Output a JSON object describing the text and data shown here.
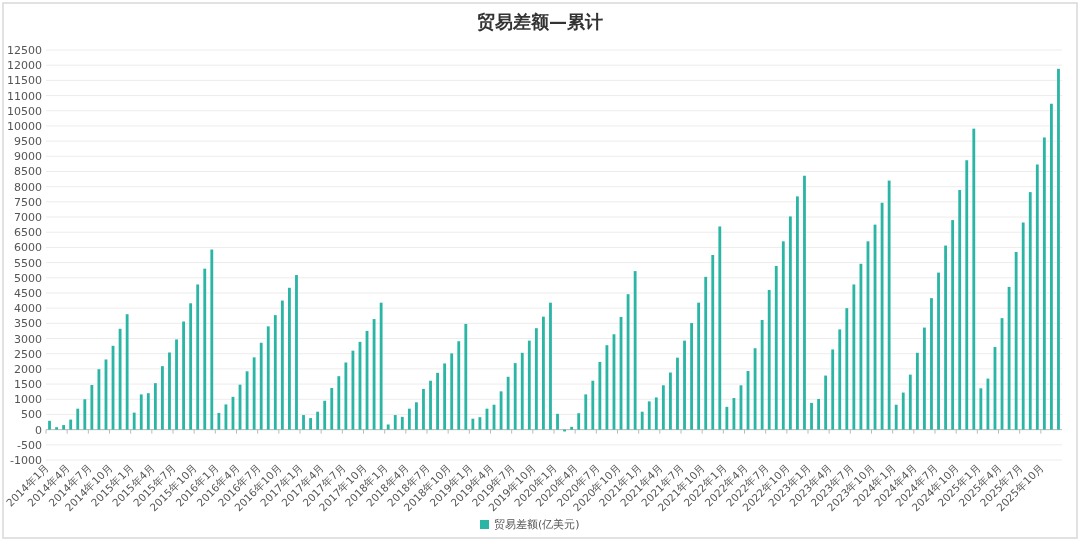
{
  "chart_data": {
    "type": "bar",
    "title": "贸易差额—累计",
    "legend": "bottom",
    "grid": "y",
    "categories": [
      "2014年1月",
      null,
      null,
      "2014年4月",
      null,
      null,
      "2014年7月",
      null,
      null,
      "2014年10月",
      null,
      null,
      "2015年1月",
      null,
      null,
      "2015年4月",
      null,
      null,
      "2015年7月",
      null,
      null,
      "2015年10月",
      null,
      null,
      "2016年1月",
      null,
      null,
      "2016年4月",
      null,
      null,
      "2016年7月",
      null,
      null,
      "2016年10月",
      null,
      null,
      "2017年1月",
      null,
      null,
      "2017年4月",
      null,
      null,
      "2017年7月",
      null,
      null,
      "2017年10月",
      null,
      null,
      "2018年1月",
      null,
      null,
      "2018年4月",
      null,
      null,
      "2018年7月",
      null,
      null,
      "2018年10月",
      null,
      null,
      "2019年1月",
      null,
      null,
      "2019年4月",
      null,
      null,
      "2019年7月",
      null,
      null,
      "2019年10月",
      null,
      null,
      "2020年1月",
      null,
      null,
      "2020年4月",
      null,
      null,
      "2020年7月",
      null,
      null,
      "2020年10月",
      null,
      null,
      "2021年1月",
      null,
      null,
      "2021年4月",
      null,
      null,
      "2021年7月",
      null,
      null,
      "2021年10月",
      null,
      null,
      "2022年1月",
      null,
      null,
      "2022年4月",
      null,
      null,
      "2022年7月",
      null,
      null,
      "2022年10月",
      null,
      null,
      "2023年1月",
      null,
      null,
      "2023年4月",
      null,
      null,
      "2023年7月",
      null,
      null,
      "2023年10月",
      null,
      null,
      "2024年1月",
      null,
      null,
      "2024年4月",
      null,
      null,
      "2024年7月",
      null,
      null,
      "2024年10月",
      null,
      null,
      "2025年1月",
      null,
      null,
      "2025年4月",
      null,
      null,
      "2025年7月",
      null,
      null,
      "2025年10月",
      null,
      null
    ],
    "ylim": [
      -1000,
      12500
    ],
    "yticks": [
      -1000,
      -500,
      0,
      500,
      1000,
      1500,
      2000,
      2500,
      3000,
      3500,
      4000,
      4500,
      5000,
      5500,
      6000,
      6500,
      7000,
      7500,
      8000,
      8500,
      9000,
      9500,
      10000,
      10500,
      11000,
      11500,
      12000,
      12500
    ],
    "series": [
      {
        "name": "贸易差额(亿美元)",
        "color": "#2ab5a5",
        "values": [
          290,
          80,
          150,
          330,
          690,
          1000,
          1470,
          1990,
          2310,
          2760,
          3320,
          3800,
          560,
          1160,
          1200,
          1530,
          2090,
          2540,
          2970,
          3560,
          4160,
          4780,
          5300,
          5930,
          550,
          830,
          1080,
          1480,
          1920,
          2380,
          2860,
          3400,
          3770,
          4250,
          4670,
          5090,
          480,
          380,
          590,
          950,
          1370,
          1760,
          2210,
          2600,
          2890,
          3250,
          3640,
          4180,
          170,
          480,
          420,
          690,
          900,
          1340,
          1610,
          1870,
          2180,
          2510,
          2910,
          3480,
          360,
          410,
          690,
          820,
          1260,
          1740,
          2190,
          2530,
          2930,
          3340,
          3720,
          4180,
          520,
          -60,
          90,
          540,
          1160,
          1610,
          2230,
          2780,
          3140,
          3710,
          4460,
          5220,
          590,
          930,
          1060,
          1460,
          1880,
          2370,
          2930,
          3510,
          4180,
          5030,
          5750,
          6690,
          750,
          1040,
          1460,
          1930,
          2680,
          3610,
          4600,
          5390,
          6200,
          7020,
          7680,
          8360,
          880,
          1010,
          1780,
          2640,
          3300,
          4000,
          4780,
          5460,
          6200,
          6750,
          7470,
          8200,
          820,
          1220,
          1810,
          2530,
          3360,
          4330,
          5170,
          6060,
          6900,
          7890,
          8870,
          9910,
          1360,
          1680,
          2720,
          3670,
          4700,
          5850,
          6820,
          7820,
          8730,
          9620,
          10730,
          11880
        ]
      }
    ]
  }
}
